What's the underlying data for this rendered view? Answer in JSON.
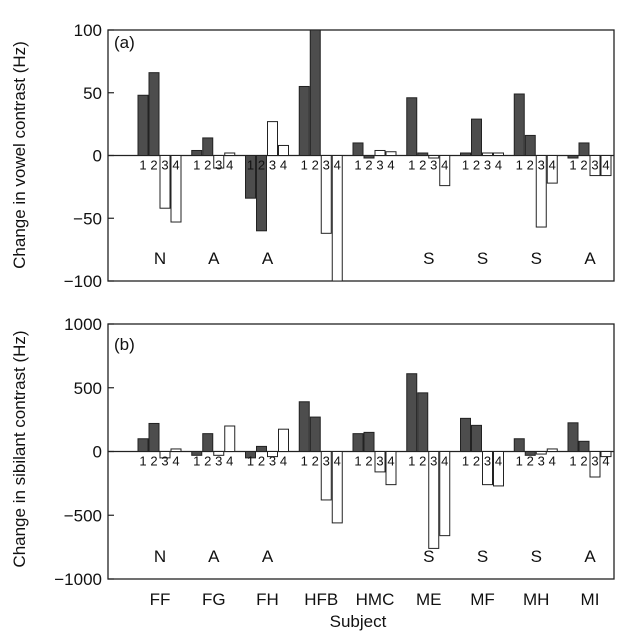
{
  "chart_data": [
    {
      "type": "bar",
      "panel_label": "(a)",
      "ylabel": "Change in vowel contrast (Hz)",
      "xlabel": "",
      "ylim": [
        -100,
        100
      ],
      "yticks": [
        100,
        50,
        0,
        -50,
        -100
      ],
      "grid": false,
      "bar_numbers": [
        "1",
        "2",
        "3",
        "4"
      ],
      "bar_colors": [
        "#4d4d4d",
        "#4d4d4d",
        "#ffffff",
        "#ffffff"
      ],
      "groups": [
        {
          "subject": "FF",
          "condition": "N",
          "values": [
            48,
            66,
            -42,
            -53
          ]
        },
        {
          "subject": "FG",
          "condition": "A",
          "values": [
            4,
            14,
            -10,
            2
          ]
        },
        {
          "subject": "FH",
          "condition": "A",
          "values": [
            -34,
            -60,
            27,
            8
          ]
        },
        {
          "subject": "HFB",
          "condition": "",
          "values": [
            55,
            100,
            -62,
            -100
          ]
        },
        {
          "subject": "HMC",
          "condition": "",
          "values": [
            10,
            -2,
            4,
            3
          ]
        },
        {
          "subject": "ME",
          "condition": "S",
          "values": [
            46,
            2,
            -2,
            -24
          ]
        },
        {
          "subject": "MF",
          "condition": "S",
          "values": [
            2,
            29,
            2,
            2
          ]
        },
        {
          "subject": "MH",
          "condition": "S",
          "values": [
            49,
            16,
            -57,
            -22
          ]
        },
        {
          "subject": "MI",
          "condition": "A",
          "values": [
            -2,
            10,
            -16,
            -16
          ]
        }
      ]
    },
    {
      "type": "bar",
      "panel_label": "(b)",
      "ylabel": "Change in sibilant contrast (Hz)",
      "xlabel": "Subject",
      "ylim": [
        -1000,
        1000
      ],
      "yticks": [
        1000,
        500,
        0,
        -500,
        -1000
      ],
      "grid": false,
      "bar_numbers": [
        "1",
        "2",
        "3",
        "4"
      ],
      "bar_colors": [
        "#4d4d4d",
        "#4d4d4d",
        "#ffffff",
        "#ffffff"
      ],
      "groups": [
        {
          "subject": "FF",
          "condition": "N",
          "values": [
            100,
            220,
            -50,
            20
          ]
        },
        {
          "subject": "FG",
          "condition": "A",
          "values": [
            -30,
            140,
            -30,
            200
          ]
        },
        {
          "subject": "FH",
          "condition": "A",
          "values": [
            -50,
            40,
            -40,
            175
          ]
        },
        {
          "subject": "HFB",
          "condition": "",
          "values": [
            390,
            270,
            -380,
            -560
          ]
        },
        {
          "subject": "HMC",
          "condition": "",
          "values": [
            140,
            150,
            -160,
            -260
          ]
        },
        {
          "subject": "ME",
          "condition": "S",
          "values": [
            610,
            460,
            -760,
            -660
          ]
        },
        {
          "subject": "MF",
          "condition": "S",
          "values": [
            260,
            205,
            -260,
            -270
          ]
        },
        {
          "subject": "MH",
          "condition": "S",
          "values": [
            100,
            -30,
            -20,
            20
          ]
        },
        {
          "subject": "MI",
          "condition": "A",
          "values": [
            225,
            80,
            -200,
            -40
          ]
        }
      ]
    }
  ]
}
